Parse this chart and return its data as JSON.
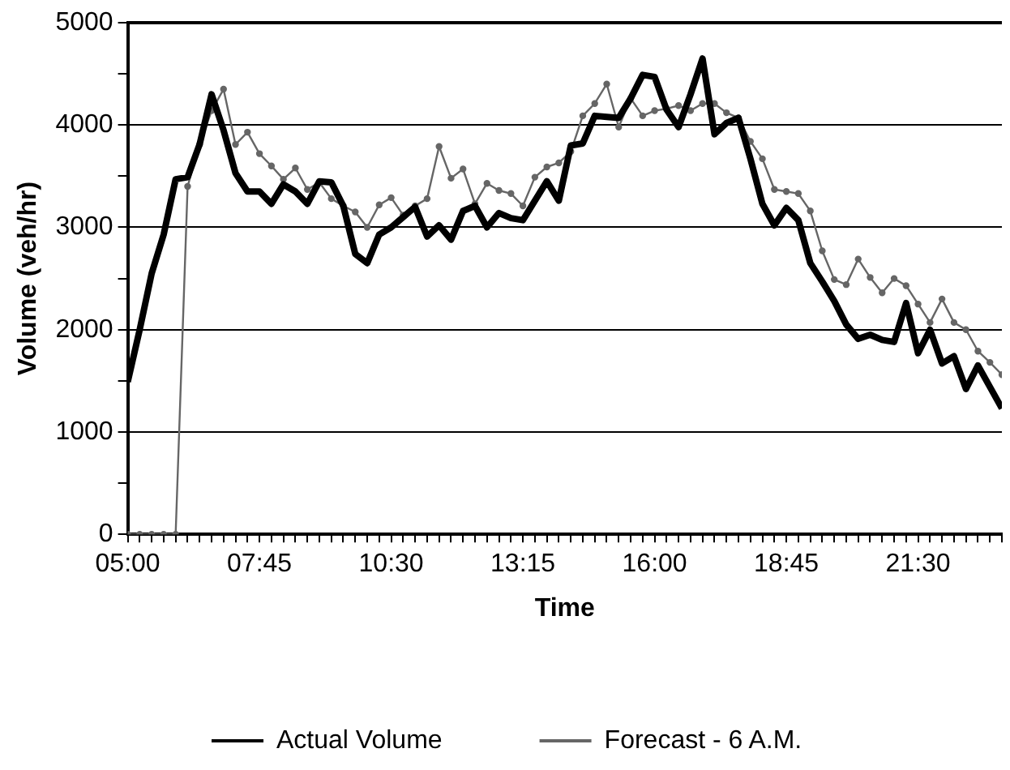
{
  "chart_data": {
    "type": "line",
    "xlabel": "Time",
    "ylabel": "Volume (veh/hr)",
    "x": [
      5,
      5.25,
      5.5,
      5.75,
      6,
      6.25,
      6.5,
      6.75,
      7,
      7.25,
      7.5,
      7.75,
      8,
      8.25,
      8.5,
      8.75,
      9,
      9.25,
      9.5,
      9.75,
      10,
      10.25,
      10.5,
      10.75,
      11,
      11.25,
      11.5,
      11.75,
      12,
      12.25,
      12.5,
      12.75,
      13,
      13.25,
      13.5,
      13.75,
      14,
      14.25,
      14.5,
      14.75,
      15,
      15.25,
      15.5,
      15.75,
      16,
      16.25,
      16.5,
      16.75,
      17,
      17.25,
      17.5,
      17.75,
      18,
      18.25,
      18.5,
      18.75,
      19,
      19.25,
      19.5,
      19.75,
      20,
      20.25,
      20.5,
      20.75,
      21,
      21.25,
      21.5,
      21.75,
      22,
      22.25,
      22.5,
      22.75,
      23,
      23.25
    ],
    "series": [
      {
        "name": "Actual Volume",
        "color": "#000000",
        "marker": "none",
        "values": [
          1490,
          2000,
          2550,
          2930,
          3470,
          3490,
          3810,
          4300,
          3950,
          3530,
          3350,
          3350,
          3230,
          3420,
          3350,
          3230,
          3450,
          3440,
          3210,
          2740,
          2650,
          2930,
          3000,
          3100,
          3200,
          2910,
          3020,
          2880,
          3160,
          3210,
          3000,
          3140,
          3090,
          3070,
          3260,
          3450,
          3260,
          3800,
          3820,
          4090,
          4080,
          4070,
          4260,
          4490,
          4470,
          4150,
          3980,
          4300,
          4650,
          3910,
          4020,
          4070,
          3670,
          3230,
          3020,
          3190,
          3070,
          2650,
          2470,
          2280,
          2050,
          1910,
          1950,
          1900,
          1880,
          2260,
          1770,
          2000,
          1670,
          1740,
          1420,
          1650,
          1440,
          1230
        ]
      },
      {
        "name": "Forecast - 6 A.M.",
        "color": "#666666",
        "marker": "circle",
        "values": [
          0,
          0,
          0,
          0,
          0,
          3400,
          3810,
          4140,
          4350,
          3810,
          3930,
          3720,
          3600,
          3470,
          3580,
          3370,
          3440,
          3280,
          3210,
          3150,
          3000,
          3220,
          3290,
          3120,
          3210,
          3280,
          3790,
          3480,
          3570,
          3230,
          3430,
          3360,
          3330,
          3210,
          3490,
          3590,
          3630,
          3740,
          4090,
          4210,
          4400,
          3980,
          4260,
          4090,
          4140,
          4160,
          4190,
          4140,
          4210,
          4210,
          4120,
          4070,
          3840,
          3670,
          3370,
          3350,
          3330,
          3160,
          2770,
          2490,
          2440,
          2690,
          2510,
          2360,
          2500,
          2430,
          2250,
          2070,
          2300,
          2070,
          2000,
          1790,
          1680,
          1560
        ]
      }
    ],
    "xlim": [
      5,
      23.25
    ],
    "xticks": [
      {
        "value": 5,
        "label": "05:00"
      },
      {
        "value": 5.25,
        "label": null
      },
      {
        "value": 5.5,
        "label": null
      },
      {
        "value": 5.75,
        "label": null
      },
      {
        "value": 6,
        "label": null
      },
      {
        "value": 6.25,
        "label": null
      },
      {
        "value": 6.5,
        "label": null
      },
      {
        "value": 6.75,
        "label": null
      },
      {
        "value": 7,
        "label": null
      },
      {
        "value": 7.25,
        "label": null
      },
      {
        "value": 7.5,
        "label": null
      },
      {
        "value": 7.75,
        "label": "07:45"
      },
      {
        "value": 8,
        "label": null
      },
      {
        "value": 8.25,
        "label": null
      },
      {
        "value": 8.5,
        "label": null
      },
      {
        "value": 8.75,
        "label": null
      },
      {
        "value": 9,
        "label": null
      },
      {
        "value": 9.25,
        "label": null
      },
      {
        "value": 9.5,
        "label": null
      },
      {
        "value": 9.75,
        "label": null
      },
      {
        "value": 10,
        "label": null
      },
      {
        "value": 10.25,
        "label": null
      },
      {
        "value": 10.5,
        "label": "10:30"
      },
      {
        "value": 10.75,
        "label": null
      },
      {
        "value": 11,
        "label": null
      },
      {
        "value": 11.25,
        "label": null
      },
      {
        "value": 11.5,
        "label": null
      },
      {
        "value": 11.75,
        "label": null
      },
      {
        "value": 12,
        "label": null
      },
      {
        "value": 12.25,
        "label": null
      },
      {
        "value": 12.5,
        "label": null
      },
      {
        "value": 12.75,
        "label": null
      },
      {
        "value": 13,
        "label": null
      },
      {
        "value": 13.25,
        "label": "13:15"
      },
      {
        "value": 13.5,
        "label": null
      },
      {
        "value": 13.75,
        "label": null
      },
      {
        "value": 14,
        "label": null
      },
      {
        "value": 14.25,
        "label": null
      },
      {
        "value": 14.5,
        "label": null
      },
      {
        "value": 14.75,
        "label": null
      },
      {
        "value": 15,
        "label": null
      },
      {
        "value": 15.25,
        "label": null
      },
      {
        "value": 15.5,
        "label": null
      },
      {
        "value": 15.75,
        "label": null
      },
      {
        "value": 16,
        "label": "16:00"
      },
      {
        "value": 16.25,
        "label": null
      },
      {
        "value": 16.5,
        "label": null
      },
      {
        "value": 16.75,
        "label": null
      },
      {
        "value": 17,
        "label": null
      },
      {
        "value": 17.25,
        "label": null
      },
      {
        "value": 17.5,
        "label": null
      },
      {
        "value": 17.75,
        "label": null
      },
      {
        "value": 18,
        "label": null
      },
      {
        "value": 18.25,
        "label": null
      },
      {
        "value": 18.5,
        "label": null
      },
      {
        "value": 18.75,
        "label": "18:45"
      },
      {
        "value": 19,
        "label": null
      },
      {
        "value": 19.25,
        "label": null
      },
      {
        "value": 19.5,
        "label": null
      },
      {
        "value": 19.75,
        "label": null
      },
      {
        "value": 20,
        "label": null
      },
      {
        "value": 20.25,
        "label": null
      },
      {
        "value": 20.5,
        "label": null
      },
      {
        "value": 20.75,
        "label": null
      },
      {
        "value": 21,
        "label": null
      },
      {
        "value": 21.25,
        "label": null
      },
      {
        "value": 21.5,
        "label": "21:30"
      },
      {
        "value": 21.75,
        "label": null
      },
      {
        "value": 22,
        "label": null
      },
      {
        "value": 22.25,
        "label": null
      },
      {
        "value": 22.5,
        "label": null
      },
      {
        "value": 22.75,
        "label": null
      },
      {
        "value": 23,
        "label": null
      },
      {
        "value": 23.25,
        "label": null
      }
    ],
    "ylim": [
      0,
      5000
    ],
    "yticks": [
      0,
      {
        "value": 500,
        "label": null
      },
      1000,
      {
        "value": 1500,
        "label": null
      },
      2000,
      {
        "value": 2500,
        "label": null
      },
      3000,
      {
        "value": 3500,
        "label": null
      },
      4000,
      {
        "value": 4500,
        "label": null
      },
      5000
    ],
    "grid": "y",
    "legend": "bottom",
    "line_style": "solid"
  }
}
